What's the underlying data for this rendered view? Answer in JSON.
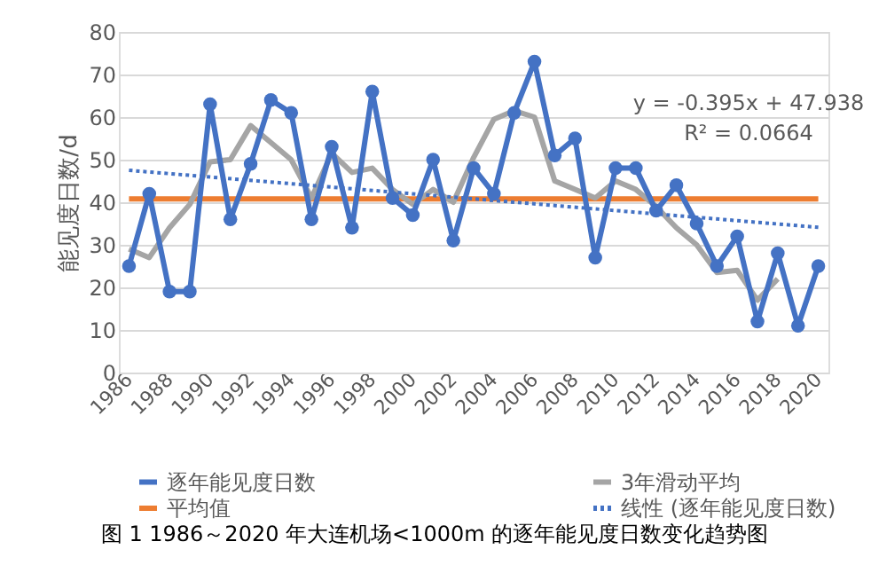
{
  "chart_data": {
    "type": "line",
    "title": "图 1 1986～2020 年大连机场<1000m 的逐年能见度日数变化趋势图",
    "ylabel": "能见度日数/d",
    "x": [
      1986,
      1987,
      1988,
      1989,
      1990,
      1991,
      1992,
      1993,
      1994,
      1995,
      1996,
      1997,
      1998,
      1999,
      2000,
      2001,
      2002,
      2003,
      2004,
      2005,
      2006,
      2007,
      2008,
      2009,
      2010,
      2011,
      2012,
      2013,
      2014,
      2015,
      2016,
      2017,
      2018,
      2019,
      2020
    ],
    "xlim": [
      1985.5,
      2020.5
    ],
    "xticks": [
      1986,
      1988,
      1990,
      1992,
      1994,
      1996,
      1998,
      2000,
      2002,
      2004,
      2006,
      2008,
      2010,
      2012,
      2014,
      2016,
      2018,
      2020
    ],
    "ylim": [
      0,
      80
    ],
    "yticks": [
      0,
      10,
      20,
      30,
      40,
      50,
      60,
      70,
      80
    ],
    "grid": "y",
    "legend": "bottom",
    "annotations": [
      "y = -0.395x + 47.938",
      "R² = 0.0664"
    ],
    "series": [
      {
        "name": "逐年能见度日数",
        "color": "#4472c4",
        "marker": "circle",
        "values": [
          25,
          42,
          19,
          19,
          63,
          36,
          49,
          64,
          61,
          36,
          53,
          34,
          66,
          41,
          37,
          50,
          31,
          48,
          42,
          61,
          73,
          51,
          55,
          27,
          48,
          48,
          38,
          44,
          35,
          25,
          32,
          12,
          28,
          11,
          25
        ]
      },
      {
        "name": "平均值",
        "color": "#ed7d31",
        "x": [
          1986,
          2020
        ],
        "values": [
          40.8,
          40.8
        ]
      },
      {
        "name": "3年滑动平均",
        "color": "#a5a5a5",
        "x": [
          1986,
          1987,
          1988,
          1989,
          1990,
          1991,
          1992,
          1993,
          1994,
          1995,
          1996,
          1997,
          1998,
          1999,
          2000,
          2001,
          2002,
          2003,
          2004,
          2005,
          2006,
          2007,
          2008,
          2009,
          2010,
          2011,
          2012,
          2013,
          2014,
          2015,
          2016,
          2017,
          2018
        ],
        "values": [
          29,
          27,
          34,
          39.5,
          49.5,
          50,
          58,
          54,
          50,
          41,
          51.5,
          47,
          48,
          43,
          39.5,
          43,
          40,
          50.5,
          59.5,
          61.5,
          60,
          45,
          43,
          41,
          45,
          43,
          39,
          34,
          30,
          23.5,
          24,
          17,
          22
        ]
      },
      {
        "name": "线性 (逐年能见度日数)",
        "color": "#4472c4",
        "line_style": "dotted",
        "x": [
          1986,
          2020
        ],
        "values": [
          47.5,
          34.1
        ]
      }
    ]
  }
}
